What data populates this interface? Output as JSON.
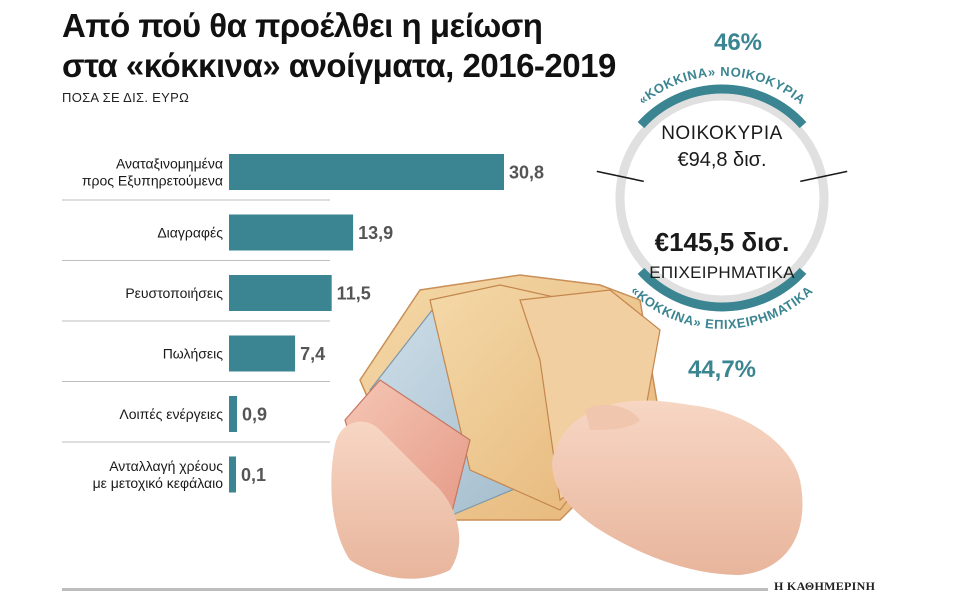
{
  "header": {
    "title_line1": "Από πού θα προέλθει η μείωση",
    "title_line2": "στα «κόκκινα» ανοίγματα, 2016-2019",
    "subtitle": "ΠΟΣΑ ΣΕ ΔΙΣ. ΕΥΡΩ"
  },
  "chart_data": [
    {
      "type": "bar",
      "orientation": "horizontal",
      "categories": [
        [
          "Αναταξινομημένα",
          "προς Εξυπηρετούμενα"
        ],
        [
          "Διαγραφές"
        ],
        [
          "Ρευστοποιήσεις"
        ],
        [
          "Πωλήσεις"
        ],
        [
          "Λοιπές ενέργειες"
        ],
        [
          "Ανταλλαγή χρέους",
          "με μετοχικό κεφάλαιο"
        ]
      ],
      "values": [
        30.8,
        13.9,
        11.5,
        7.4,
        0.9,
        0.1
      ],
      "value_labels": [
        "30,8",
        "13,9",
        "11,5",
        "7,4",
        "0,9",
        "0,1"
      ],
      "bar_color": "#3a8591",
      "title": "",
      "xlabel": "",
      "ylabel": ""
    },
    {
      "type": "pie",
      "segments": [
        {
          "label_top": "«ΚΟΚΚΙΝΑ» ΝΟΙΚΟΚΥΡΙΑ",
          "percent": "46%",
          "name": "ΝΟΙΚΟΚΥΡΙΑ",
          "amount": "€94,8 δισ."
        },
        {
          "label_top": "«ΚΟΚΚΙΝΑ» ΕΠΙΧΕΙΡΗΜΑΤΙΚΑ",
          "percent": "44,7%",
          "name": "ΕΠΙΧΕΙΡΗΜΑΤΙΚΑ",
          "amount": "€145,5 δισ."
        }
      ],
      "accent_color": "#3a8591",
      "ring_color": "#e0e0e0"
    }
  ],
  "footer": {
    "source": "Η ΚΑΘΗΜΕΡΙΝΗ"
  }
}
